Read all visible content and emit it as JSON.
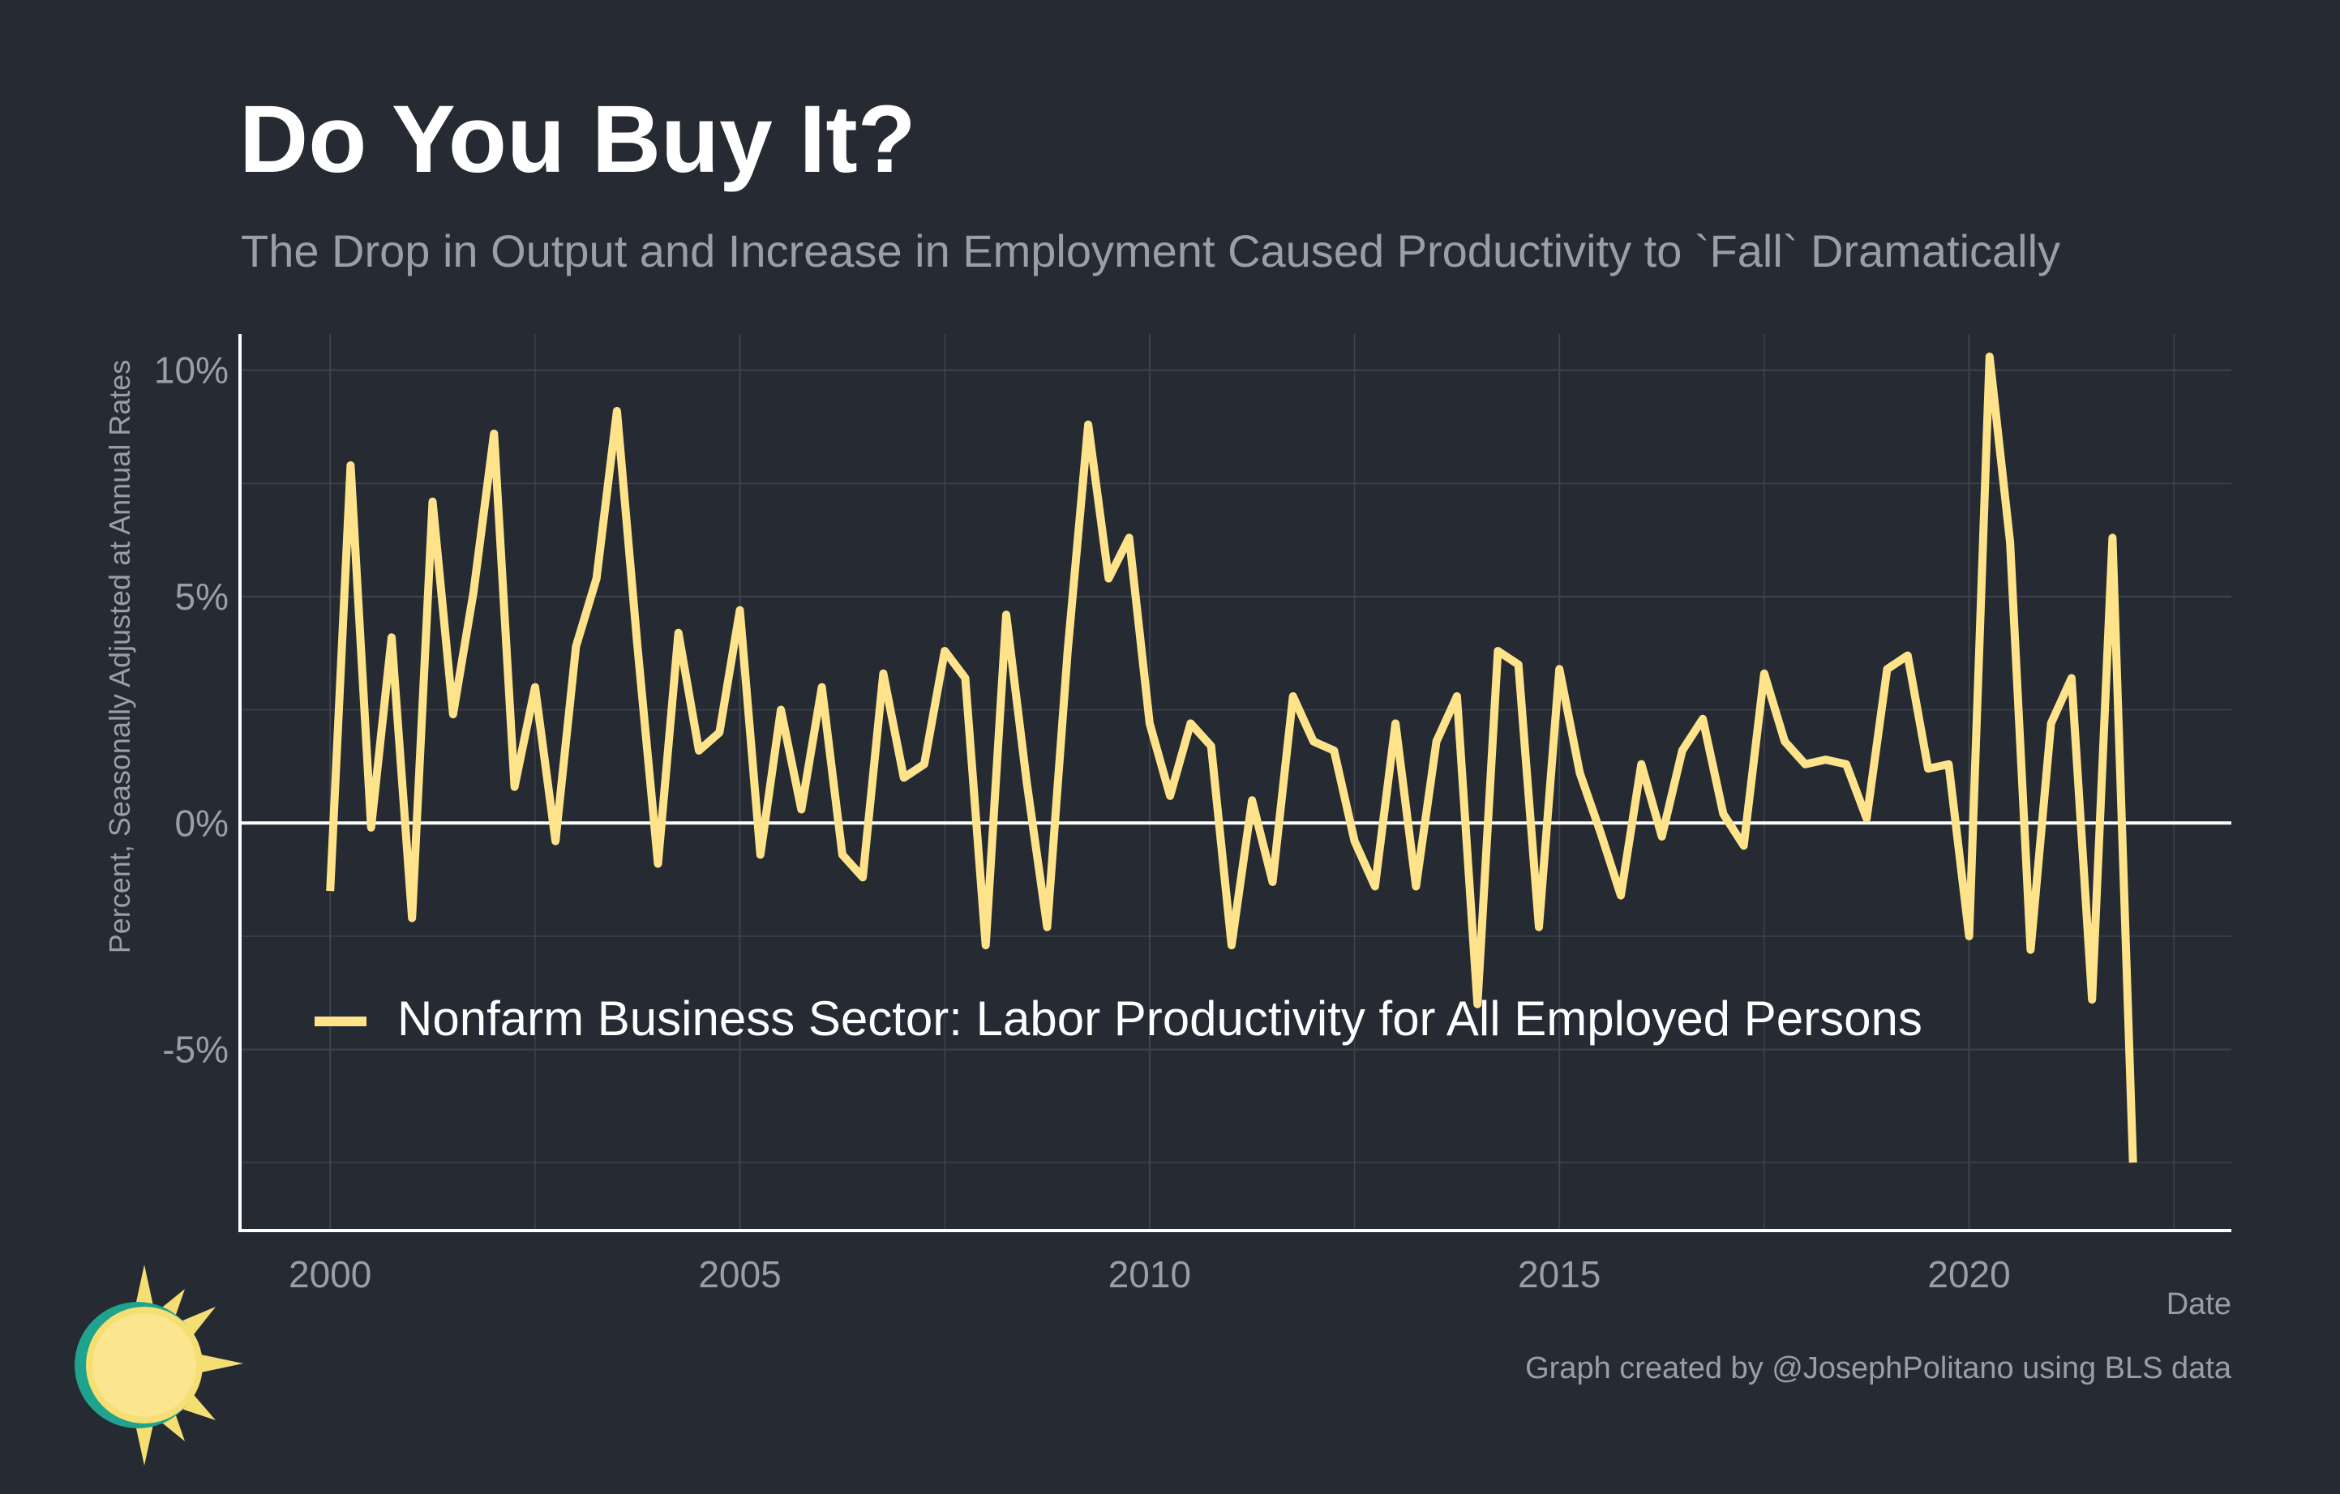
{
  "colors": {
    "background": "#252A33",
    "line": "#FFE38A",
    "grid": "#3E434C",
    "axis": "#FFFFFF",
    "zero_line": "#FFFFFF",
    "muted_text": "#9A9EA5",
    "logo_sun": "#F5DF73",
    "logo_ring": "#1FA38E"
  },
  "chart_data": {
    "type": "line",
    "title": "Do You Buy It?",
    "subtitle": "The Drop in Output and Increase in Employment Caused Productivity to `Fall` Dramatically",
    "xlabel": "Date",
    "ylabel": "Percent, Seasonally Adjusted at Annual Rates",
    "caption": "Graph created by @JosephPolitano using BLS data",
    "xlim": [
      1998.9,
      2023.2
    ],
    "ylim": [
      -9.0,
      10.8
    ],
    "x_ticks": [
      2000,
      2005,
      2010,
      2015,
      2020
    ],
    "x_tick_labels": [
      "2000",
      "2005",
      "2010",
      "2015",
      "2020"
    ],
    "y_ticks": [
      -5,
      0,
      5,
      10
    ],
    "y_tick_labels": [
      "-5%",
      "0%",
      "5%",
      "10%"
    ],
    "legend": {
      "position": "bottom-left",
      "entries": [
        "Nonfarm Business Sector: Labor Productivity for All Employed Persons"
      ]
    },
    "series": [
      {
        "name": "Nonfarm Business Sector: Labor Productivity for All Employed Persons",
        "start_year": 2000,
        "step": 0.25,
        "values": [
          -1.5,
          7.9,
          -0.1,
          4.1,
          -2.1,
          7.1,
          2.4,
          5.1,
          8.6,
          0.8,
          3.0,
          -0.4,
          3.9,
          5.4,
          9.1,
          3.9,
          -0.9,
          4.2,
          1.6,
          2.0,
          4.7,
          -0.7,
          2.5,
          0.3,
          3.0,
          -0.7,
          -1.2,
          3.3,
          1.0,
          1.3,
          3.8,
          3.2,
          -2.7,
          4.6,
          0.9,
          -2.3,
          3.8,
          8.8,
          5.4,
          6.3,
          2.2,
          0.6,
          2.2,
          1.7,
          -2.7,
          0.5,
          -1.3,
          2.8,
          1.8,
          1.6,
          -0.4,
          -1.4,
          2.2,
          -1.4,
          1.8,
          2.8,
          -4.0,
          3.8,
          3.5,
          -2.3,
          3.4,
          1.1,
          -0.2,
          -1.6,
          1.3,
          -0.3,
          1.6,
          2.3,
          0.2,
          -0.5,
          3.3,
          1.8,
          1.3,
          1.4,
          1.3,
          0.1,
          3.4,
          3.7,
          1.2,
          1.3,
          -2.5,
          10.3,
          6.2,
          -2.8,
          2.2,
          3.2,
          -3.9,
          6.3,
          -7.5
        ]
      }
    ]
  }
}
